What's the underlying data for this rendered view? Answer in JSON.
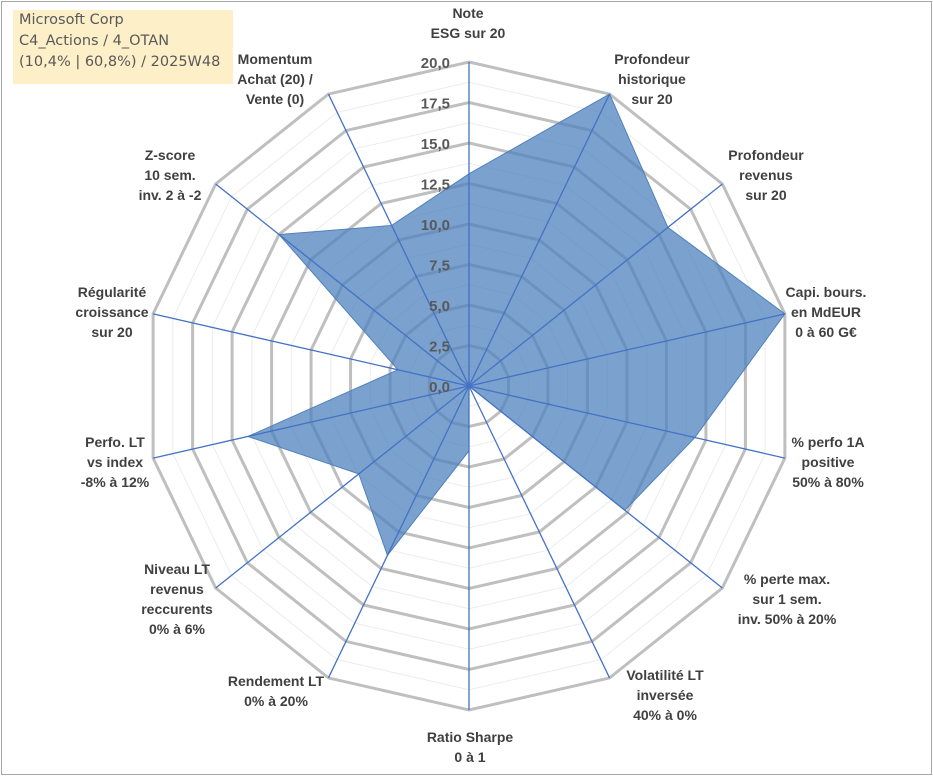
{
  "title_box": {
    "lines": [
      "Microsoft Corp",
      "C4_Actions / 4_OTAN",
      "(10,4% | 60,8%) / 2025W48"
    ],
    "background": "#fdefc8"
  },
  "chart_data": {
    "type": "radar",
    "axes": [
      {
        "label": [
          "Note",
          "ESG sur 20"
        ]
      },
      {
        "label": [
          "Profondeur",
          "historique",
          "sur 20"
        ]
      },
      {
        "label": [
          "Profondeur",
          "revenus",
          "sur 20"
        ]
      },
      {
        "label": [
          "Capi. bours.",
          "en MdEUR",
          "0 à 60 G€"
        ]
      },
      {
        "label": [
          "% perfo 1A",
          "positive",
          "50% à 80%"
        ]
      },
      {
        "label": [
          "% perte max.",
          "sur 1 sem.",
          "inv. 50% à 20%"
        ]
      },
      {
        "label": [
          "Volatilité LT",
          "inversée",
          "40% à 0%"
        ]
      },
      {
        "label": [
          "Ratio Sharpe",
          "0 à 1"
        ]
      },
      {
        "label": [
          "Rendement LT",
          "0% à 20%"
        ]
      },
      {
        "label": [
          "Niveau LT",
          "revenus",
          "reccurents",
          "0% à 6%"
        ]
      },
      {
        "label": [
          "Perfo. LT",
          "vs index",
          "-8% à 12%"
        ]
      },
      {
        "label": [
          "Régularité",
          "croissance",
          "sur 20"
        ]
      },
      {
        "label": [
          "Z-score",
          "10 sem.",
          "inv. 2 à -2"
        ]
      },
      {
        "label": [
          "Momentum",
          "Achat (20) /",
          "Vente (0)"
        ]
      }
    ],
    "values": [
      13.1,
      20,
      15.7,
      20,
      14.3,
      12.3,
      0,
      4.0,
      11.6,
      8.7,
      14.0,
      4.5,
      15.0,
      11.0
    ],
    "rlim": [
      0,
      20
    ],
    "ticks": [
      "0,0",
      "2,5",
      "5,0",
      "7,5",
      "10,0",
      "12,5",
      "15,0",
      "17,5",
      "20,0"
    ],
    "grid": true,
    "colors": {
      "fill": "#4f81bd",
      "axis": "#4472c4",
      "grid": "#bfbfbf"
    }
  }
}
